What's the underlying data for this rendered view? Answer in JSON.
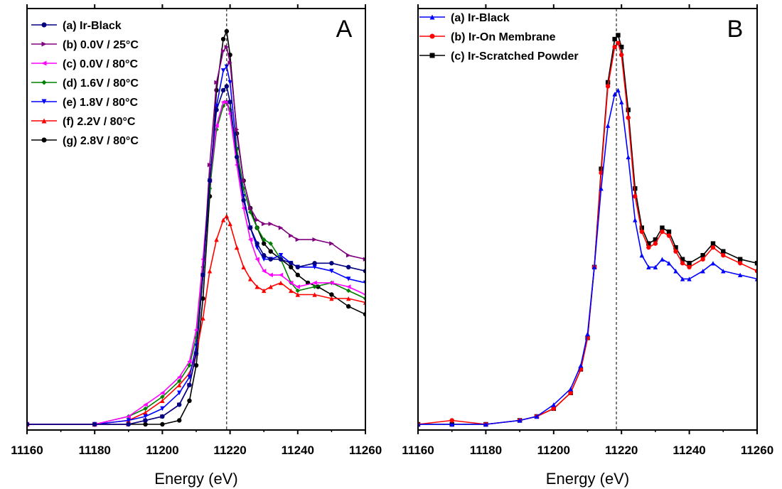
{
  "chart_data": [
    {
      "type": "line",
      "panel_label": "A",
      "xlabel": "Energy (eV)",
      "ylabel": "",
      "xlim": [
        11160,
        11260
      ],
      "x_ticks": [
        "11160",
        "11180",
        "11200",
        "11220",
        "11240",
        "11260"
      ],
      "ylim": [
        0,
        1.0
      ],
      "y_ticks_visible": false,
      "grid": false,
      "legend_position": "top-left",
      "reference_line": {
        "x": 11219,
        "style": "dashed"
      },
      "series": [
        {
          "name": "(g) 2.8V / 80°C",
          "color": "#000000",
          "marker": "circle",
          "x": [
            11160,
            11180,
            11195,
            11200,
            11205,
            11208,
            11210,
            11212,
            11214,
            11216,
            11218,
            11219,
            11220,
            11222,
            11224,
            11226,
            11228,
            11230,
            11232,
            11235,
            11238,
            11240,
            11243,
            11246,
            11250,
            11255,
            11260
          ],
          "y": [
            0.0,
            0.0,
            0.0,
            0.0,
            0.01,
            0.06,
            0.15,
            0.32,
            0.58,
            0.85,
            0.98,
            1.0,
            0.94,
            0.74,
            0.62,
            0.55,
            0.5,
            0.46,
            0.44,
            0.42,
            0.4,
            0.38,
            0.36,
            0.35,
            0.33,
            0.3,
            0.28
          ]
        },
        {
          "name": "(f)  2.2V / 80°C",
          "color": "#ff0000",
          "marker": "triangle-up",
          "x": [
            11160,
            11180,
            11190,
            11195,
            11200,
            11205,
            11208,
            11210,
            11212,
            11214,
            11216,
            11218,
            11219,
            11220,
            11222,
            11224,
            11226,
            11228,
            11230,
            11232,
            11235,
            11238,
            11240,
            11245,
            11250,
            11255,
            11260
          ],
          "y": [
            0.0,
            0.0,
            0.01,
            0.03,
            0.06,
            0.1,
            0.13,
            0.18,
            0.27,
            0.39,
            0.47,
            0.52,
            0.53,
            0.51,
            0.45,
            0.4,
            0.37,
            0.35,
            0.34,
            0.35,
            0.36,
            0.34,
            0.33,
            0.33,
            0.32,
            0.32,
            0.31
          ]
        },
        {
          "name": "(e) 1.8V / 80°C",
          "color": "#0000ff",
          "marker": "triangle-down",
          "x": [
            11160,
            11180,
            11190,
            11195,
            11200,
            11205,
            11208,
            11210,
            11212,
            11214,
            11216,
            11218,
            11219,
            11220,
            11222,
            11224,
            11226,
            11228,
            11230,
            11232,
            11235,
            11238,
            11240,
            11245,
            11250,
            11255,
            11260
          ],
          "y": [
            0.0,
            0.0,
            0.01,
            0.02,
            0.04,
            0.08,
            0.12,
            0.2,
            0.38,
            0.62,
            0.81,
            0.9,
            0.91,
            0.87,
            0.7,
            0.58,
            0.5,
            0.45,
            0.42,
            0.42,
            0.43,
            0.41,
            0.4,
            0.4,
            0.39,
            0.37,
            0.36
          ]
        },
        {
          "name": "(d) 1.6V / 80°C",
          "color": "#008000",
          "marker": "diamond",
          "x": [
            11160,
            11180,
            11190,
            11195,
            11200,
            11205,
            11208,
            11210,
            11212,
            11214,
            11216,
            11218,
            11219,
            11220,
            11222,
            11224,
            11226,
            11228,
            11230,
            11232,
            11235,
            11238,
            11240,
            11245,
            11250,
            11255,
            11260
          ],
          "y": [
            0.0,
            0.0,
            0.02,
            0.04,
            0.07,
            0.11,
            0.15,
            0.22,
            0.4,
            0.6,
            0.75,
            0.81,
            0.82,
            0.8,
            0.7,
            0.6,
            0.54,
            0.5,
            0.47,
            0.46,
            0.42,
            0.36,
            0.34,
            0.35,
            0.36,
            0.34,
            0.32
          ]
        },
        {
          "name": "(c) 0.0V / 80°C",
          "color": "#ff00ff",
          "marker": "triangle-left",
          "x": [
            11160,
            11180,
            11190,
            11195,
            11200,
            11205,
            11208,
            11210,
            11212,
            11214,
            11216,
            11218,
            11219,
            11220,
            11222,
            11224,
            11226,
            11228,
            11230,
            11232,
            11235,
            11238,
            11240,
            11245,
            11250,
            11255,
            11260
          ],
          "y": [
            0.0,
            0.0,
            0.02,
            0.05,
            0.08,
            0.12,
            0.16,
            0.24,
            0.42,
            0.62,
            0.76,
            0.82,
            0.82,
            0.79,
            0.66,
            0.55,
            0.47,
            0.42,
            0.39,
            0.38,
            0.38,
            0.36,
            0.35,
            0.36,
            0.36,
            0.35,
            0.33
          ]
        },
        {
          "name": "(b) 0.0V / 25°C",
          "color": "#800080",
          "marker": "triangle-right",
          "x": [
            11160,
            11180,
            11190,
            11195,
            11200,
            11205,
            11208,
            11210,
            11212,
            11214,
            11216,
            11218,
            11219,
            11220,
            11222,
            11224,
            11226,
            11228,
            11230,
            11232,
            11235,
            11238,
            11240,
            11245,
            11250,
            11255,
            11260
          ],
          "y": [
            0.0,
            0.0,
            0.0,
            0.01,
            0.02,
            0.05,
            0.1,
            0.18,
            0.38,
            0.66,
            0.87,
            0.95,
            0.96,
            0.92,
            0.75,
            0.62,
            0.55,
            0.52,
            0.51,
            0.51,
            0.5,
            0.48,
            0.47,
            0.47,
            0.46,
            0.43,
            0.42
          ]
        },
        {
          "name": "(a) Ir-Black",
          "color": "#000080",
          "marker": "circle",
          "x": [
            11160,
            11180,
            11190,
            11195,
            11200,
            11205,
            11208,
            11210,
            11212,
            11214,
            11216,
            11218,
            11219,
            11220,
            11222,
            11224,
            11226,
            11228,
            11230,
            11232,
            11235,
            11238,
            11240,
            11245,
            11250,
            11255,
            11260
          ],
          "y": [
            0.0,
            0.0,
            0.0,
            0.01,
            0.02,
            0.05,
            0.1,
            0.18,
            0.38,
            0.62,
            0.8,
            0.85,
            0.86,
            0.82,
            0.68,
            0.57,
            0.5,
            0.46,
            0.43,
            0.42,
            0.42,
            0.41,
            0.4,
            0.41,
            0.41,
            0.4,
            0.39
          ]
        }
      ]
    },
    {
      "type": "line",
      "panel_label": "B",
      "xlabel": "Energy (eV)",
      "ylabel": "",
      "xlim": [
        11160,
        11260
      ],
      "x_ticks": [
        "11160",
        "11180",
        "11200",
        "11220",
        "11240",
        "11260"
      ],
      "ylim": [
        0,
        1.0
      ],
      "y_ticks_visible": false,
      "grid": false,
      "legend_position": "top-left",
      "reference_line": {
        "x": 11218.5,
        "style": "dashed"
      },
      "series": [
        {
          "name": "(c) Ir-Scratched Powder",
          "color": "#000000",
          "marker": "square",
          "x": [
            11160,
            11170,
            11180,
            11190,
            11195,
            11200,
            11205,
            11208,
            11210,
            11212,
            11214,
            11216,
            11218,
            11219,
            11220,
            11222,
            11224,
            11226,
            11228,
            11230,
            11232,
            11234,
            11236,
            11238,
            11240,
            11244,
            11247,
            11250,
            11255,
            11260
          ],
          "y": [
            0.0,
            0.0,
            0.0,
            0.01,
            0.02,
            0.04,
            0.08,
            0.14,
            0.22,
            0.4,
            0.65,
            0.87,
            0.98,
            0.99,
            0.96,
            0.8,
            0.6,
            0.5,
            0.46,
            0.47,
            0.5,
            0.49,
            0.45,
            0.42,
            0.41,
            0.43,
            0.46,
            0.44,
            0.42,
            0.41
          ]
        },
        {
          "name": "(b) Ir-On Membrane",
          "color": "#ff0000",
          "marker": "circle",
          "x": [
            11160,
            11170,
            11180,
            11190,
            11195,
            11200,
            11205,
            11208,
            11210,
            11212,
            11214,
            11216,
            11218,
            11219,
            11220,
            11222,
            11224,
            11226,
            11228,
            11230,
            11232,
            11234,
            11236,
            11238,
            11240,
            11244,
            11247,
            11250,
            11255,
            11260
          ],
          "y": [
            0.0,
            0.01,
            0.0,
            0.01,
            0.02,
            0.04,
            0.08,
            0.14,
            0.22,
            0.4,
            0.64,
            0.86,
            0.96,
            0.97,
            0.94,
            0.78,
            0.58,
            0.49,
            0.45,
            0.46,
            0.49,
            0.48,
            0.44,
            0.41,
            0.4,
            0.42,
            0.45,
            0.43,
            0.41,
            0.39
          ]
        },
        {
          "name": "(a) Ir-Black",
          "color": "#0000ff",
          "marker": "triangle-up",
          "x": [
            11160,
            11170,
            11180,
            11190,
            11195,
            11200,
            11205,
            11208,
            11210,
            11212,
            11214,
            11216,
            11218,
            11219,
            11220,
            11222,
            11224,
            11226,
            11228,
            11230,
            11232,
            11234,
            11236,
            11238,
            11240,
            11244,
            11247,
            11250,
            11255,
            11260
          ],
          "y": [
            0.0,
            0.0,
            0.0,
            0.01,
            0.02,
            0.05,
            0.09,
            0.15,
            0.23,
            0.4,
            0.6,
            0.76,
            0.84,
            0.85,
            0.82,
            0.68,
            0.52,
            0.43,
            0.4,
            0.4,
            0.42,
            0.41,
            0.39,
            0.37,
            0.37,
            0.39,
            0.41,
            0.39,
            0.38,
            0.37
          ]
        }
      ]
    }
  ]
}
